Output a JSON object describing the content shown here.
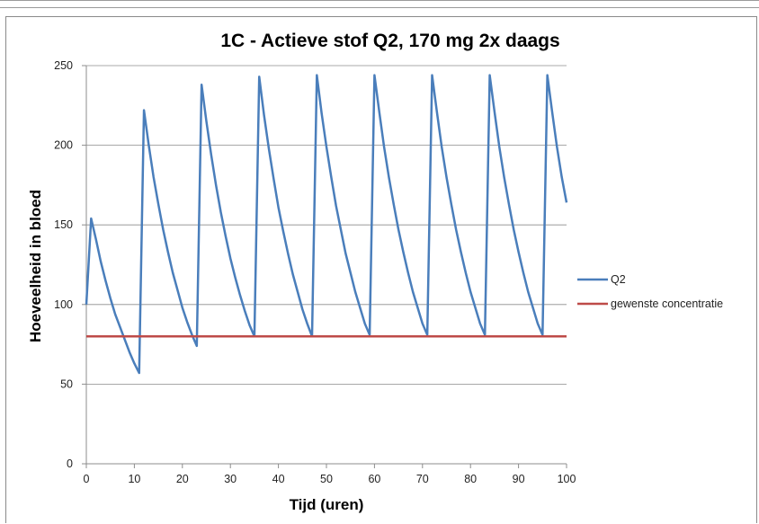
{
  "chart_data": {
    "type": "line",
    "title": "1C - Actieve stof Q2, 170 mg 2x daags",
    "xlabel": "Tijd (uren)",
    "ylabel": "Hoeveelheid in bloed",
    "xlim": [
      0,
      100
    ],
    "ylim": [
      0,
      250
    ],
    "xticks": [
      0,
      10,
      20,
      30,
      40,
      50,
      60,
      70,
      80,
      90,
      100
    ],
    "yticks": [
      0,
      50,
      100,
      150,
      200,
      250
    ],
    "grid": "horizontal",
    "legend_position": "right",
    "series": [
      {
        "name": "Q2",
        "color": "#4a7ebb",
        "x": [
          0,
          1,
          2,
          3,
          4,
          5,
          6,
          7,
          8,
          9,
          10,
          11,
          12,
          13,
          14,
          15,
          16,
          17,
          18,
          19,
          20,
          21,
          22,
          23,
          24,
          25,
          26,
          27,
          28,
          29,
          30,
          31,
          32,
          33,
          34,
          35,
          36,
          37,
          38,
          39,
          40,
          41,
          42,
          43,
          44,
          45,
          46,
          47,
          48,
          49,
          50,
          51,
          52,
          53,
          54,
          55,
          56,
          57,
          58,
          59,
          60,
          61,
          62,
          63,
          64,
          65,
          66,
          67,
          68,
          69,
          70,
          71,
          72,
          73,
          74,
          75,
          76,
          77,
          78,
          79,
          80,
          81,
          82,
          83,
          84,
          85,
          86,
          87,
          88,
          89,
          90,
          91,
          92,
          93,
          94,
          95,
          96,
          97,
          98,
          99,
          100
        ],
        "values": [
          100,
          154,
          141,
          127,
          115,
          104,
          94,
          86,
          78,
          70,
          63,
          57,
          222,
          200,
          180,
          163,
          147,
          133,
          120,
          109,
          98,
          89,
          81,
          74,
          238,
          215,
          194,
          175,
          158,
          143,
          129,
          117,
          106,
          96,
          87,
          80,
          243,
          219,
          198,
          179,
          161,
          146,
          132,
          119,
          108,
          97,
          88,
          80,
          244,
          220,
          199,
          180,
          162,
          147,
          132,
          120,
          108,
          98,
          88,
          81,
          244,
          221,
          199,
          180,
          163,
          147,
          133,
          120,
          108,
          98,
          88,
          81,
          244,
          221,
          199,
          180,
          163,
          147,
          133,
          120,
          108,
          98,
          88,
          81,
          244,
          221,
          199,
          180,
          163,
          147,
          133,
          120,
          108,
          98,
          88,
          81,
          244,
          221,
          199,
          180,
          164
        ]
      },
      {
        "name": "gewenste concentratie",
        "color": "#be4b48",
        "x": [
          0,
          100
        ],
        "values": [
          80,
          80
        ]
      }
    ]
  }
}
